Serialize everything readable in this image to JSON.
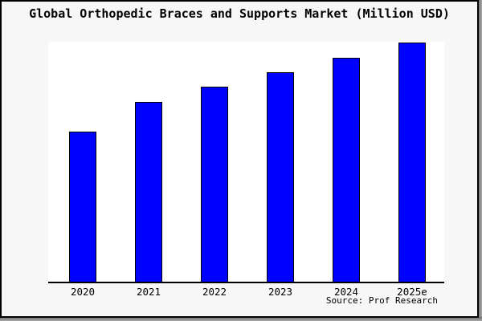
{
  "title": "Global Orthopedic Braces and Supports Market (Million USD)",
  "source": "Source: Prof Research",
  "colors": {
    "frame_background": "#f7f7f7",
    "frame_border": "#000000",
    "plot_background": "#ffffff",
    "bar_fill": "#0000ff",
    "bar_edge": "#000000",
    "axis_line": "#000000",
    "text": "#000000",
    "shadow": "#8f8f8f"
  },
  "chart_data": {
    "type": "bar",
    "title": "Global Orthopedic Braces and Supports Market (Million USD)",
    "categories": [
      "2020",
      "2021",
      "2022",
      "2023",
      "2024",
      "2025e"
    ],
    "values": [
      62.8,
      75.3,
      81.8,
      87.7,
      93.9,
      100
    ],
    "xlabel": "",
    "ylabel": "",
    "ylim": [
      0,
      100.5
    ],
    "y_axis_visible": false,
    "gridlines": false,
    "legend": false,
    "source": "Source: Prof Research"
  }
}
